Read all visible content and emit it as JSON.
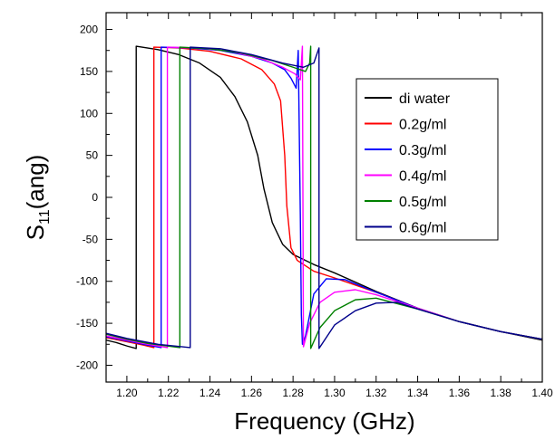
{
  "chart_data": {
    "type": "line",
    "xlabel": "Frequency (GHz)",
    "ylabel": {
      "main": "S",
      "sub": "11",
      "rest": "(ang)"
    },
    "xlim": [
      1.19,
      1.4
    ],
    "ylim": [
      -220,
      220
    ],
    "xticks": [
      "1.20",
      "1.22",
      "1.24",
      "1.26",
      "1.28",
      "1.30",
      "1.32",
      "1.34",
      "1.36",
      "1.38",
      "1.40"
    ],
    "yticks": [
      "-200",
      "-150",
      "-100",
      "-50",
      "0",
      "50",
      "100",
      "150",
      "200"
    ],
    "legend_position": "right",
    "grid": false,
    "series": [
      {
        "name": "di water",
        "color": "#000000",
        "points": [
          [
            1.19,
            -170
          ],
          [
            1.195,
            -173
          ],
          [
            1.2,
            -177
          ],
          [
            1.2045,
            -180
          ],
          [
            1.2045,
            180
          ],
          [
            1.215,
            176
          ],
          [
            1.225,
            170
          ],
          [
            1.235,
            160
          ],
          [
            1.245,
            143
          ],
          [
            1.252,
            120
          ],
          [
            1.258,
            90
          ],
          [
            1.263,
            50
          ],
          [
            1.266,
            10
          ],
          [
            1.27,
            -30
          ],
          [
            1.275,
            -56
          ],
          [
            1.28,
            -68
          ],
          [
            1.29,
            -80
          ],
          [
            1.3,
            -90
          ],
          [
            1.32,
            -112
          ],
          [
            1.34,
            -132
          ],
          [
            1.36,
            -148
          ],
          [
            1.38,
            -160
          ],
          [
            1.4,
            -170
          ]
        ]
      },
      {
        "name": "0.2g/ml",
        "color": "#ff0000",
        "points": [
          [
            1.19,
            -167
          ],
          [
            1.2,
            -172
          ],
          [
            1.208,
            -176
          ],
          [
            1.213,
            -179
          ],
          [
            1.213,
            179
          ],
          [
            1.225,
            178
          ],
          [
            1.24,
            174
          ],
          [
            1.255,
            165
          ],
          [
            1.265,
            152
          ],
          [
            1.271,
            135
          ],
          [
            1.274,
            115
          ],
          [
            1.276,
            50
          ],
          [
            1.277,
            -10
          ],
          [
            1.279,
            -60
          ],
          [
            1.282,
            -75
          ],
          [
            1.29,
            -88
          ],
          [
            1.3,
            -96
          ],
          [
            1.32,
            -113
          ],
          [
            1.34,
            -132
          ],
          [
            1.36,
            -148
          ],
          [
            1.38,
            -160
          ],
          [
            1.4,
            -169
          ]
        ]
      },
      {
        "name": "0.3g/ml",
        "color": "#0000ff",
        "points": [
          [
            1.19,
            -166
          ],
          [
            1.2,
            -171
          ],
          [
            1.21,
            -176
          ],
          [
            1.2165,
            -179
          ],
          [
            1.2165,
            179
          ],
          [
            1.23,
            178
          ],
          [
            1.245,
            175
          ],
          [
            1.26,
            168
          ],
          [
            1.27,
            160
          ],
          [
            1.276,
            152
          ],
          [
            1.279,
            142
          ],
          [
            1.2815,
            130
          ],
          [
            1.2825,
            175
          ],
          [
            1.2835,
            -20
          ],
          [
            1.284,
            -140
          ],
          [
            1.2845,
            -175
          ],
          [
            1.286,
            -165
          ],
          [
            1.29,
            -115
          ],
          [
            1.296,
            -97
          ],
          [
            1.305,
            -98
          ],
          [
            1.32,
            -113
          ],
          [
            1.34,
            -132
          ],
          [
            1.36,
            -148
          ],
          [
            1.38,
            -160
          ],
          [
            1.4,
            -169
          ]
        ]
      },
      {
        "name": "0.4g/ml",
        "color": "#ff00ff",
        "points": [
          [
            1.19,
            -165
          ],
          [
            1.2,
            -170
          ],
          [
            1.21,
            -175
          ],
          [
            1.2195,
            -179
          ],
          [
            1.2195,
            179
          ],
          [
            1.235,
            178
          ],
          [
            1.25,
            174
          ],
          [
            1.265,
            165
          ],
          [
            1.275,
            155
          ],
          [
            1.281,
            147
          ],
          [
            1.2835,
            140
          ],
          [
            1.2845,
            180
          ],
          [
            1.285,
            -178
          ],
          [
            1.288,
            -150
          ],
          [
            1.293,
            -125
          ],
          [
            1.3,
            -113
          ],
          [
            1.31,
            -110
          ],
          [
            1.32,
            -116
          ],
          [
            1.34,
            -132
          ],
          [
            1.36,
            -148
          ],
          [
            1.38,
            -160
          ],
          [
            1.4,
            -169
          ]
        ]
      },
      {
        "name": "0.5g/ml",
        "color": "#008000",
        "points": [
          [
            1.19,
            -163
          ],
          [
            1.2,
            -169
          ],
          [
            1.21,
            -174
          ],
          [
            1.2255,
            -179
          ],
          [
            1.2255,
            179
          ],
          [
            1.24,
            177
          ],
          [
            1.255,
            172
          ],
          [
            1.27,
            163
          ],
          [
            1.28,
            155
          ],
          [
            1.286,
            150
          ],
          [
            1.288,
            160
          ],
          [
            1.2885,
            180
          ],
          [
            1.2885,
            -180
          ],
          [
            1.293,
            -155
          ],
          [
            1.3,
            -135
          ],
          [
            1.31,
            -122
          ],
          [
            1.32,
            -120
          ],
          [
            1.34,
            -133
          ],
          [
            1.36,
            -148
          ],
          [
            1.38,
            -160
          ],
          [
            1.4,
            -169
          ]
        ]
      },
      {
        "name": "0.6g/ml",
        "color": "#00008b",
        "points": [
          [
            1.19,
            -162
          ],
          [
            1.2,
            -168
          ],
          [
            1.215,
            -175
          ],
          [
            1.2305,
            -179
          ],
          [
            1.2305,
            179
          ],
          [
            1.245,
            177
          ],
          [
            1.26,
            170
          ],
          [
            1.275,
            160
          ],
          [
            1.285,
            155
          ],
          [
            1.29,
            160
          ],
          [
            1.2925,
            178
          ],
          [
            1.2925,
            -180
          ],
          [
            1.3,
            -152
          ],
          [
            1.31,
            -135
          ],
          [
            1.32,
            -126
          ],
          [
            1.33,
            -125
          ],
          [
            1.34,
            -133
          ],
          [
            1.36,
            -148
          ],
          [
            1.38,
            -160
          ],
          [
            1.4,
            -169
          ]
        ]
      }
    ]
  }
}
